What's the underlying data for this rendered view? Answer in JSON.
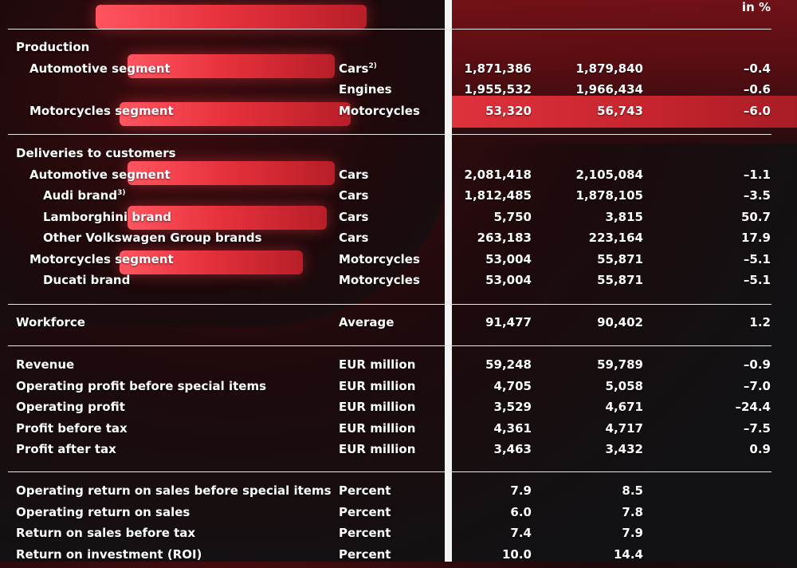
{
  "header": {
    "change_label": "in %"
  },
  "sections": [
    [
      {
        "label": "Production",
        "unit": "",
        "v1": "",
        "v2": "",
        "ch": "",
        "indent": 0
      },
      {
        "label": "Automotive segment",
        "unit": "Cars",
        "unit_sup": "2)",
        "v1": "1,871,386",
        "v2": "1,879,840",
        "ch": "–0.4",
        "indent": 1
      },
      {
        "label": "",
        "unit": "Engines",
        "v1": "1,955,532",
        "v2": "1,966,434",
        "ch": "–0.6",
        "indent": 1
      },
      {
        "label": "Motorcycles segment",
        "unit": "Motorcycles",
        "v1": "53,320",
        "v2": "56,743",
        "ch": "–6.0",
        "indent": 1
      }
    ],
    [
      {
        "label": "Deliveries to customers",
        "unit": "",
        "v1": "",
        "v2": "",
        "ch": "",
        "indent": 0
      },
      {
        "label": "Automotive segment",
        "unit": "Cars",
        "v1": "2,081,418",
        "v2": "2,105,084",
        "ch": "–1.1",
        "indent": 1
      },
      {
        "label": "Audi brand",
        "label_sup": "3)",
        "unit": "Cars",
        "v1": "1,812,485",
        "v2": "1,878,105",
        "ch": "–3.5",
        "indent": 2
      },
      {
        "label": "Lamborghini brand",
        "unit": "Cars",
        "v1": "5,750",
        "v2": "3,815",
        "ch": "50.7",
        "indent": 2
      },
      {
        "label": "Other Volkswagen Group brands",
        "unit": "Cars",
        "v1": "263,183",
        "v2": "223,164",
        "ch": "17.9",
        "indent": 2
      },
      {
        "label": "Motorcycles segment",
        "unit": "Motorcycles",
        "v1": "53,004",
        "v2": "55,871",
        "ch": "–5.1",
        "indent": 1
      },
      {
        "label": "Ducati brand",
        "unit": "Motorcycles",
        "v1": "53,004",
        "v2": "55,871",
        "ch": "–5.1",
        "indent": 2
      }
    ],
    [
      {
        "label": "Workforce",
        "unit": "Average",
        "v1": "91,477",
        "v2": "90,402",
        "ch": "1.2",
        "indent": 0
      }
    ],
    [
      {
        "label": "Revenue",
        "unit": "EUR million",
        "v1": "59,248",
        "v2": "59,789",
        "ch": "–0.9",
        "indent": 0
      },
      {
        "label": "Operating profit before special items",
        "unit": "EUR million",
        "v1": "4,705",
        "v2": "5,058",
        "ch": "–7.0",
        "indent": 0
      },
      {
        "label": "Operating profit",
        "unit": "EUR million",
        "v1": "3,529",
        "v2": "4,671",
        "ch": "–24.4",
        "indent": 0
      },
      {
        "label": "Profit before tax",
        "unit": "EUR million",
        "v1": "4,361",
        "v2": "4,717",
        "ch": "–7.5",
        "indent": 0
      },
      {
        "label": "Profit after tax",
        "unit": "EUR million",
        "v1": "3,463",
        "v2": "3,432",
        "ch": "0.9",
        "indent": 0
      }
    ],
    [
      {
        "label": "Operating return on sales before special items",
        "unit": "Percent",
        "v1": "7.9",
        "v2": "8.5",
        "ch": "",
        "indent": 0
      },
      {
        "label": "Operating return on sales",
        "unit": "Percent",
        "v1": "6.0",
        "v2": "7.8",
        "ch": "",
        "indent": 0
      },
      {
        "label": "Return on sales before tax",
        "unit": "Percent",
        "v1": "7.4",
        "v2": "7.9",
        "ch": "",
        "indent": 0
      },
      {
        "label": "Return on investment (ROI)",
        "unit": "Percent",
        "v1": "10.0",
        "v2": "14.4",
        "ch": "",
        "indent": 0
      }
    ]
  ]
}
